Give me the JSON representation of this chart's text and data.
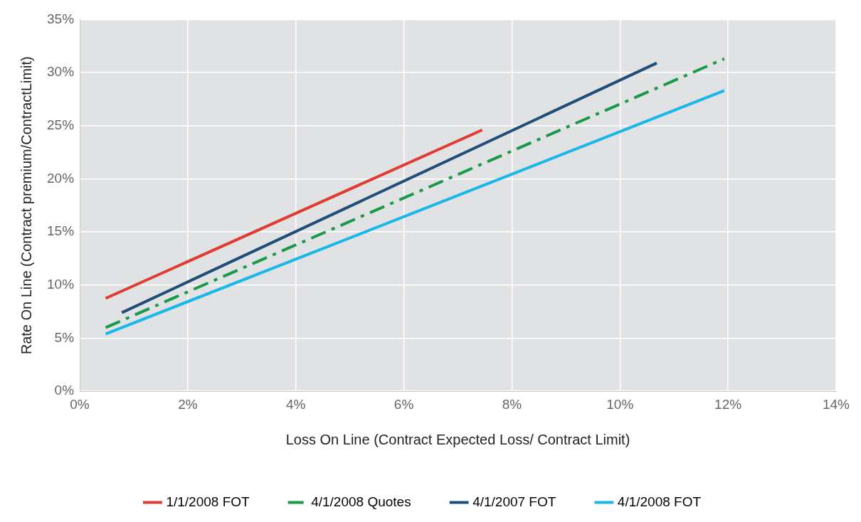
{
  "chart_data": {
    "type": "line",
    "xlabel": "Loss On Line (Contract Expected Loss/ Contract Limit)",
    "ylabel": "Rate On Line (Contract premium/ContractLimit)",
    "xlim": [
      0,
      14
    ],
    "xticks": [
      {
        "value": 0,
        "label": "0%"
      },
      {
        "value": 2,
        "label": "2%"
      },
      {
        "value": 4,
        "label": "4%"
      },
      {
        "value": 6,
        "label": "6%"
      },
      {
        "value": 8,
        "label": "8%"
      },
      {
        "value": 10,
        "label": "10%"
      },
      {
        "value": 12,
        "label": "12%"
      },
      {
        "value": 14,
        "label": "14%"
      }
    ],
    "ylim": [
      0,
      35
    ],
    "yticks": [
      {
        "value": 0,
        "label": "0%"
      },
      {
        "value": 5,
        "label": "5%"
      },
      {
        "value": 10,
        "label": "10%"
      },
      {
        "value": 15,
        "label": "15%"
      },
      {
        "value": 20,
        "label": "20%"
      },
      {
        "value": 25,
        "label": "25%"
      },
      {
        "value": 30,
        "label": "30%"
      },
      {
        "value": 35,
        "label": "35%"
      }
    ],
    "grid": true,
    "legend": "bottom",
    "marker": "none",
    "series": [
      {
        "name": "1/1/2008 FOT",
        "color": "#e03c31",
        "x": [
          0.48,
          7.45
        ],
        "values": [
          8.75,
          24.6
        ],
        "line_style": "solid"
      },
      {
        "name": "4/1/2008 Quotes",
        "color": "#1a9a48",
        "x": [
          0.48,
          11.93
        ],
        "values": [
          6.0,
          31.3
        ],
        "line_style": "dashed"
      },
      {
        "name": "4/1/2007 FOT",
        "color": "#1f4e79",
        "x": [
          0.78,
          10.68
        ],
        "values": [
          7.4,
          30.9
        ],
        "line_style": "solid"
      },
      {
        "name": "4/1/2008 FOT",
        "color": "#1ab8ea",
        "x": [
          0.48,
          11.93
        ],
        "values": [
          5.4,
          28.3
        ],
        "line_style": "solid"
      }
    ]
  }
}
